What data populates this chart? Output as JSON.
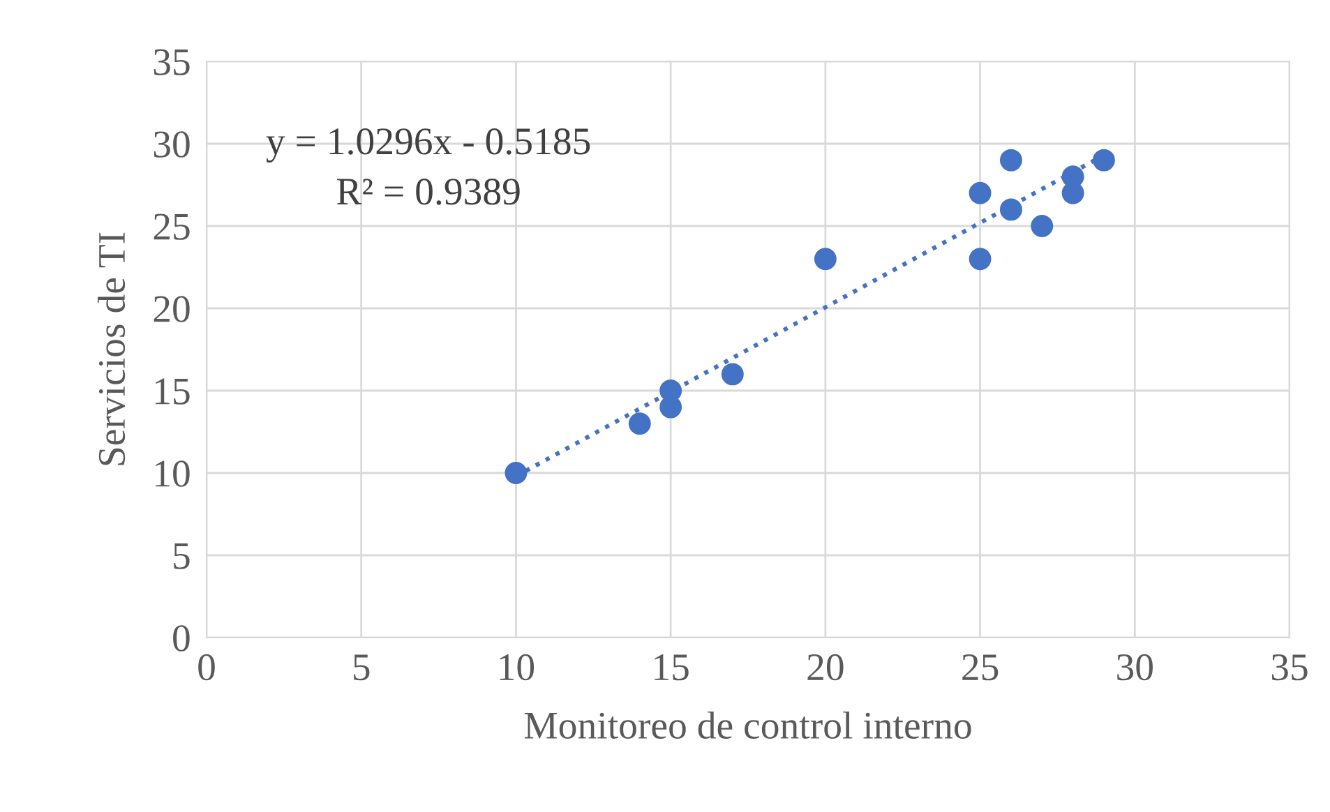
{
  "chart_data": {
    "type": "scatter",
    "xlabel": "Monitoreo de control interno",
    "ylabel": "Servicios de TI",
    "series": [
      {
        "color": "#4472c4",
        "marker": "circle",
        "x": [
          10,
          14,
          15,
          15,
          17,
          20,
          25,
          25,
          26,
          26,
          27,
          28,
          28,
          29
        ],
        "values": [
          10,
          13,
          15,
          14,
          16,
          23,
          27,
          23,
          29,
          26,
          25,
          28,
          27,
          29
        ]
      },
      {
        "type": "line",
        "color": "#4472c4",
        "line_style": "dotted",
        "marker": "none",
        "x": [
          10,
          29
        ],
        "values": [
          9.8,
          29.3
        ]
      }
    ],
    "annotations": [
      "y = 1.0296x - 0.5185",
      "R² = 0.9389"
    ],
    "xlim": [
      0,
      35
    ],
    "xticks": [
      0,
      5,
      10,
      15,
      20,
      25,
      30,
      35
    ],
    "ylim": [
      0,
      35
    ],
    "yticks": [
      0,
      5,
      10,
      15,
      20,
      25,
      30,
      35
    ],
    "grid": true
  }
}
